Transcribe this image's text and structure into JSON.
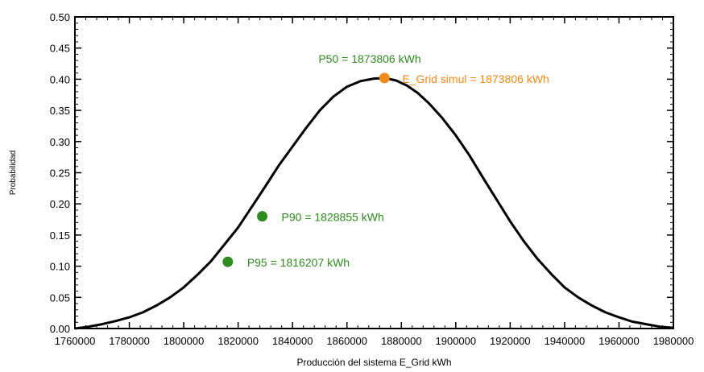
{
  "chart_data": {
    "type": "line",
    "title": "",
    "xlabel": "Producción del sistema E_Grid kWh",
    "ylabel": "Probabilidad",
    "xlim": [
      1760000,
      1980000
    ],
    "ylim": [
      0,
      0.5
    ],
    "xticks": [
      1760000,
      1780000,
      1800000,
      1820000,
      1840000,
      1860000,
      1880000,
      1900000,
      1920000,
      1940000,
      1960000,
      1980000
    ],
    "yticks": [
      0.0,
      0.05,
      0.1,
      0.15,
      0.2,
      0.25,
      0.3,
      0.35,
      0.4,
      0.45,
      0.5
    ],
    "ytick_labels": [
      "0.00",
      "0.05",
      "0.10",
      "0.15",
      "0.20",
      "0.25",
      "0.30",
      "0.35",
      "0.40",
      "0.45",
      "0.50"
    ],
    "grid": false,
    "line_color": "#000000",
    "series": [
      {
        "x": [
          1760000,
          1765000,
          1770000,
          1775000,
          1780000,
          1785000,
          1790000,
          1795000,
          1800000,
          1805000,
          1810000,
          1815000,
          1820000,
          1825000,
          1830000,
          1835000,
          1840000,
          1845000,
          1850000,
          1855000,
          1860000,
          1865000,
          1870000,
          1873806,
          1878000,
          1882000,
          1886000,
          1890000,
          1895000,
          1900000,
          1905000,
          1910000,
          1915000,
          1920000,
          1925000,
          1930000,
          1935000,
          1940000,
          1945000,
          1950000,
          1955000,
          1960000,
          1965000,
          1970000,
          1975000,
          1980000
        ],
        "y": [
          0.0,
          0.003,
          0.007,
          0.012,
          0.018,
          0.026,
          0.037,
          0.05,
          0.066,
          0.086,
          0.108,
          0.135,
          0.162,
          0.195,
          0.228,
          0.262,
          0.292,
          0.322,
          0.35,
          0.372,
          0.388,
          0.397,
          0.401,
          0.402,
          0.398,
          0.39,
          0.378,
          0.362,
          0.338,
          0.31,
          0.278,
          0.242,
          0.207,
          0.172,
          0.14,
          0.112,
          0.088,
          0.066,
          0.05,
          0.037,
          0.026,
          0.018,
          0.011,
          0.007,
          0.003,
          0.001
        ]
      }
    ],
    "annotations": [
      {
        "label": "P50 = 1873806 kWh",
        "x": 1873806,
        "y": 0.402,
        "color": "#2e8b1e",
        "marker": false
      },
      {
        "label": "E_Grid simul = 1873806 kWh",
        "x": 1873806,
        "y": 0.402,
        "color": "#f28a1a",
        "marker": true
      },
      {
        "label": "P90 = 1828855 kWh",
        "x": 1828855,
        "y": 0.18,
        "color": "#2e8b1e",
        "marker": true
      },
      {
        "label": "P95 = 1816207 kWh",
        "x": 1816207,
        "y": 0.107,
        "color": "#2e8b1e",
        "marker": true
      }
    ]
  }
}
